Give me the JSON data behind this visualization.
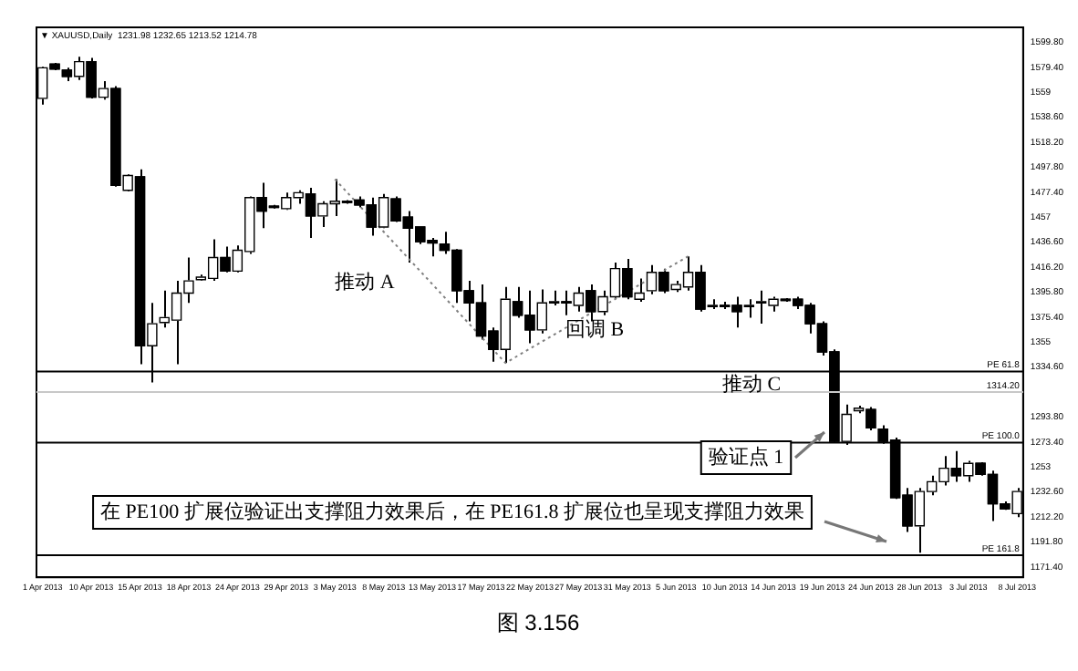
{
  "chart_data": {
    "type": "candlestick",
    "title": "▼ XAUUSD,Daily  1231.98 1232.65 1213.52 1214.78",
    "categories": [
      "1 Apr 2013",
      null,
      null,
      null,
      "10 Apr 2013",
      null,
      null,
      null,
      "15 Apr 2013",
      null,
      null,
      null,
      "18 Apr 2013",
      null,
      null,
      null,
      "24 Apr 2013",
      null,
      null,
      null,
      "29 Apr 2013",
      null,
      null,
      null,
      "3 May 2013",
      null,
      null,
      null,
      "8 May 2013",
      null,
      null,
      null,
      "13 May 2013",
      null,
      null,
      null,
      "17 May 2013",
      null,
      null,
      null,
      "22 May 2013",
      null,
      null,
      null,
      "27 May 2013",
      null,
      null,
      null,
      "31 May 2013",
      null,
      null,
      null,
      "5 Jun 2013",
      null,
      null,
      null,
      "10 Jun 2013",
      null,
      null,
      null,
      "14 Jun 2013",
      null,
      null,
      null,
      "19 Jun 2013",
      null,
      null,
      null,
      "24 Jun 2013",
      null,
      null,
      null,
      "28 Jun 2013",
      null,
      null,
      null,
      "3 Jul 2013",
      null,
      null,
      null,
      "8 Jul 2013"
    ],
    "ohlc": [
      [
        1554,
        1580,
        1549,
        1579
      ],
      [
        1582,
        1583,
        1577,
        1578
      ],
      [
        1577,
        1579,
        1568,
        1572
      ],
      [
        1572,
        1588,
        1569,
        1584
      ],
      [
        1584,
        1587,
        1554,
        1555
      ],
      [
        1555,
        1568,
        1553,
        1562
      ],
      [
        1562,
        1564,
        1482,
        1483
      ],
      [
        1479,
        1492,
        1478,
        1491
      ],
      [
        1490,
        1496,
        1337,
        1352
      ],
      [
        1352,
        1387,
        1322,
        1370
      ],
      [
        1371,
        1397,
        1367,
        1375
      ],
      [
        1373,
        1405,
        1337,
        1395
      ],
      [
        1395,
        1424,
        1387,
        1405
      ],
      [
        1406,
        1410,
        1405,
        1408
      ],
      [
        1407,
        1439,
        1405,
        1424
      ],
      [
        1424,
        1433,
        1412,
        1413
      ],
      [
        1413,
        1434,
        1412,
        1430
      ],
      [
        1429,
        1474,
        1427,
        1473
      ],
      [
        1473,
        1485,
        1448,
        1462
      ],
      [
        1466,
        1467,
        1464,
        1465
      ],
      [
        1464,
        1477,
        1463,
        1473
      ],
      [
        1473,
        1479,
        1468,
        1477
      ],
      [
        1476,
        1481,
        1440,
        1458
      ],
      [
        1458,
        1470,
        1449,
        1468
      ],
      [
        1468,
        1488,
        1458,
        1470
      ],
      [
        1470,
        1471,
        1468,
        1469
      ],
      [
        1471,
        1474,
        1465,
        1467
      ],
      [
        1467,
        1473,
        1442,
        1449
      ],
      [
        1449,
        1476,
        1448,
        1473
      ],
      [
        1472,
        1474,
        1453,
        1454
      ],
      [
        1457,
        1462,
        1420,
        1448
      ],
      [
        1449,
        1449,
        1435,
        1437
      ],
      [
        1438,
        1440,
        1425,
        1436
      ],
      [
        1435,
        1445,
        1427,
        1430
      ],
      [
        1430,
        1431,
        1387,
        1397
      ],
      [
        1397,
        1405,
        1372,
        1387
      ],
      [
        1387,
        1402,
        1357,
        1360
      ],
      [
        1364,
        1367,
        1339,
        1349
      ],
      [
        1349,
        1400,
        1338,
        1390
      ],
      [
        1388,
        1400,
        1375,
        1377
      ],
      [
        1377,
        1397,
        1354,
        1365
      ],
      [
        1365,
        1398,
        1362,
        1387
      ],
      [
        1387,
        1397,
        1385,
        1388
      ],
      [
        1388,
        1397,
        1377,
        1387
      ],
      [
        1385,
        1400,
        1380,
        1395
      ],
      [
        1397,
        1402,
        1372,
        1380
      ],
      [
        1380,
        1397,
        1377,
        1392
      ],
      [
        1392,
        1420,
        1390,
        1415
      ],
      [
        1415,
        1423,
        1390,
        1392
      ],
      [
        1390,
        1407,
        1388,
        1395
      ],
      [
        1397,
        1418,
        1394,
        1412
      ],
      [
        1412,
        1415,
        1395,
        1397
      ],
      [
        1398,
        1405,
        1396,
        1402
      ],
      [
        1400,
        1425,
        1397,
        1412
      ],
      [
        1412,
        1418,
        1380,
        1382
      ],
      [
        1384,
        1390,
        1382,
        1385
      ],
      [
        1385,
        1388,
        1382,
        1384
      ],
      [
        1385,
        1392,
        1367,
        1380
      ],
      [
        1384,
        1390,
        1375,
        1385
      ],
      [
        1387,
        1397,
        1370,
        1388
      ],
      [
        1385,
        1392,
        1380,
        1390
      ],
      [
        1390,
        1391,
        1388,
        1389
      ],
      [
        1390,
        1392,
        1382,
        1385
      ],
      [
        1385,
        1387,
        1362,
        1370
      ],
      [
        1370,
        1372,
        1344,
        1347
      ],
      [
        1347,
        1349,
        1273,
        1274
      ],
      [
        1274,
        1304,
        1271,
        1296
      ],
      [
        1299,
        1303,
        1297,
        1301
      ],
      [
        1300,
        1302,
        1283,
        1285
      ],
      [
        1284,
        1287,
        1272,
        1274
      ],
      [
        1275,
        1277,
        1227,
        1228
      ],
      [
        1230,
        1236,
        1200,
        1205
      ],
      [
        1205,
        1236,
        1183,
        1233
      ],
      [
        1233,
        1246,
        1230,
        1241
      ],
      [
        1241,
        1262,
        1238,
        1252
      ],
      [
        1252,
        1266,
        1241,
        1246
      ],
      [
        1246,
        1258,
        1241,
        1256
      ],
      [
        1256,
        1257,
        1246,
        1247
      ],
      [
        1247,
        1250,
        1209,
        1223
      ],
      [
        1223,
        1225,
        1218,
        1219
      ],
      [
        1215,
        1236,
        1212,
        1233
      ]
    ],
    "colors": [
      "#ffffff",
      "#000000",
      "#000000",
      "#ffffff",
      "#000000",
      "#ffffff",
      "#000000",
      "#ffffff",
      "#000000",
      "#ffffff",
      "#ffffff",
      "#ffffff",
      "#ffffff",
      "#ffffff",
      "#ffffff",
      "#000000",
      "#ffffff",
      "#ffffff",
      "#000000",
      "#000000",
      "#ffffff",
      "#ffffff",
      "#000000",
      "#ffffff",
      "#ffffff",
      "#000000",
      "#000000",
      "#000000",
      "#ffffff",
      "#000000",
      "#000000",
      "#000000",
      "#000000",
      "#000000",
      "#000000",
      "#000000",
      "#000000",
      "#000000",
      "#ffffff",
      "#000000",
      "#000000",
      "#ffffff",
      "#ffffff",
      "#000000",
      "#ffffff",
      "#000000",
      "#ffffff",
      "#ffffff",
      "#000000",
      "#ffffff",
      "#ffffff",
      "#000000",
      "#ffffff",
      "#ffffff",
      "#000000",
      "#ffffff",
      "#000000",
      "#000000",
      "#ffffff",
      "#ffffff",
      "#ffffff",
      "#000000",
      "#000000",
      "#000000",
      "#000000",
      "#000000",
      "#ffffff",
      "#ffffff",
      "#000000",
      "#000000",
      "#000000",
      "#000000",
      "#ffffff",
      "#ffffff",
      "#ffffff",
      "#000000",
      "#ffffff",
      "#000000",
      "#000000",
      "#000000",
      "#ffffff"
    ],
    "series": [
      {
        "type": "line",
        "color": "#808080",
        "line_style": "dotted",
        "marker": "none",
        "values": [
          null,
          null,
          null,
          null,
          null,
          null,
          null,
          null,
          null,
          null,
          null,
          null,
          null,
          null,
          null,
          null,
          null,
          null,
          null,
          null,
          null,
          null,
          null,
          null,
          1488,
          null,
          null,
          null,
          null,
          null,
          null,
          null,
          null,
          null,
          null,
          null,
          null,
          null,
          1338,
          null,
          null,
          null,
          null,
          null,
          null,
          null,
          null,
          null,
          null,
          null,
          null,
          null,
          null,
          1425,
          null,
          null,
          null,
          null,
          null,
          null,
          null,
          null,
          null,
          null,
          null,
          null,
          null,
          null,
          null,
          null,
          null,
          null,
          null,
          null,
          null,
          null,
          null,
          null,
          null,
          null,
          null
        ]
      }
    ],
    "ylim": [
      1163,
      1612
    ],
    "yticks": [
      {
        "value": 1171.4,
        "label": "1171.40"
      },
      {
        "value": 1191.8,
        "label": "1191.80"
      },
      {
        "value": 1212.2,
        "label": "1212.20"
      },
      {
        "value": 1232.6,
        "label": "1232.60"
      },
      1253,
      {
        "value": 1273.4,
        "label": "1273.40"
      },
      {
        "value": 1293.8,
        "label": "1293.80"
      },
      {
        "value": 1334.6,
        "label": "1334.60"
      },
      1355,
      {
        "value": 1375.4,
        "label": "1375.40"
      },
      {
        "value": 1395.8,
        "label": "1395.80"
      },
      {
        "value": 1416.2,
        "label": "1416.20"
      },
      {
        "value": 1436.6,
        "label": "1436.60"
      },
      1457,
      {
        "value": 1477.4,
        "label": "1477.40"
      },
      {
        "value": 1497.8,
        "label": "1497.80"
      },
      {
        "value": 1518.2,
        "label": "1518.20"
      },
      {
        "value": 1538.6,
        "label": "1538.60"
      },
      1559,
      {
        "value": 1579.4,
        "label": "1579.40"
      },
      {
        "value": 1599.8,
        "label": "1599.80"
      }
    ],
    "ref_lines": [
      {
        "axis": "y",
        "value": 1331,
        "label": "PE 61.8",
        "color": "#000000"
      },
      {
        "axis": "y",
        "value": 1273,
        "label": "PE 100.0",
        "color": "#000000"
      },
      {
        "axis": "y",
        "value": 1181,
        "label": "PE 161.8",
        "color": "#000000"
      },
      {
        "axis": "y",
        "value": 1314.2,
        "label": "1314.20",
        "color": "#c8c8c8"
      }
    ],
    "annotations": [
      "推动 A",
      "回调 B",
      "推动 C",
      "验证点 1",
      "在 PE100 扩展位验证出支撑阻力效果后，在 PE161.8 扩展位也呈现支撑阻力效果",
      "图 3.156"
    ],
    "grid": false,
    "legend": false
  }
}
